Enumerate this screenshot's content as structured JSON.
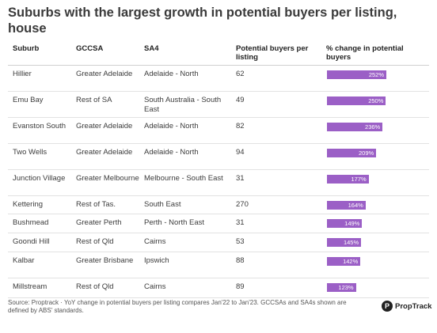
{
  "title": "Suburbs with the largest growth in potential buyers per listing, house",
  "columns": {
    "suburb": "Suburb",
    "gccsa": "GCCSA",
    "sa4": "SA4",
    "buyers": "Potential buyers per listing",
    "change": "% change in potential buyers"
  },
  "rows": [
    {
      "suburb": "Hillier",
      "gccsa": "Greater Adelaide",
      "sa4": "Adelaide - North",
      "buyers": "62",
      "change_label": "252%"
    },
    {
      "suburb": "Emu Bay",
      "gccsa": "Rest of SA",
      "sa4": "South Australia - South East",
      "buyers": "49",
      "change_label": "250%"
    },
    {
      "suburb": "Evanston South",
      "gccsa": "Greater Adelaide",
      "sa4": "Adelaide - North",
      "buyers": "82",
      "change_label": "236%"
    },
    {
      "suburb": "Two Wells",
      "gccsa": "Greater Adelaide",
      "sa4": "Adelaide - North",
      "buyers": "94",
      "change_label": "209%"
    },
    {
      "suburb": "Junction Village",
      "gccsa": "Greater Melbourne",
      "sa4": "Melbourne - South East",
      "buyers": "31",
      "change_label": "177%"
    },
    {
      "suburb": "Kettering",
      "gccsa": "Rest of Tas.",
      "sa4": "South East",
      "buyers": "270",
      "change_label": "164%"
    },
    {
      "suburb": "Bushmead",
      "gccsa": "Greater Perth",
      "sa4": "Perth - North East",
      "buyers": "31",
      "change_label": "149%"
    },
    {
      "suburb": "Goondi Hill",
      "gccsa": "Rest of Qld",
      "sa4": "Cairns",
      "buyers": "53",
      "change_label": "145%"
    },
    {
      "suburb": "Kalbar",
      "gccsa": "Greater Brisbane",
      "sa4": "Ipswich",
      "buyers": "88",
      "change_label": "142%"
    },
    {
      "suburb": "Millstream",
      "gccsa": "Rest of Qld",
      "sa4": "Cairns",
      "buyers": "89",
      "change_label": "123%"
    }
  ],
  "source": "Source: Proptrack · YoY change in potential buyers per listing compares Jan'22 to Jan'23. GCCSAs and SA4s shown are defined by ABS' standards.",
  "brand": "PropTrack",
  "colors": {
    "bar": "#9b5fc6"
  },
  "chart_data": {
    "type": "bar",
    "categories": [
      "Hillier",
      "Emu Bay",
      "Evanston South",
      "Two Wells",
      "Junction Village",
      "Kettering",
      "Bushmead",
      "Goondi Hill",
      "Kalbar",
      "Millstream"
    ],
    "values": [
      252,
      250,
      236,
      209,
      177,
      164,
      149,
      145,
      142,
      123
    ],
    "title": "Suburbs with the largest growth in potential buyers per listing, house",
    "orientation": "horizontal"
  }
}
